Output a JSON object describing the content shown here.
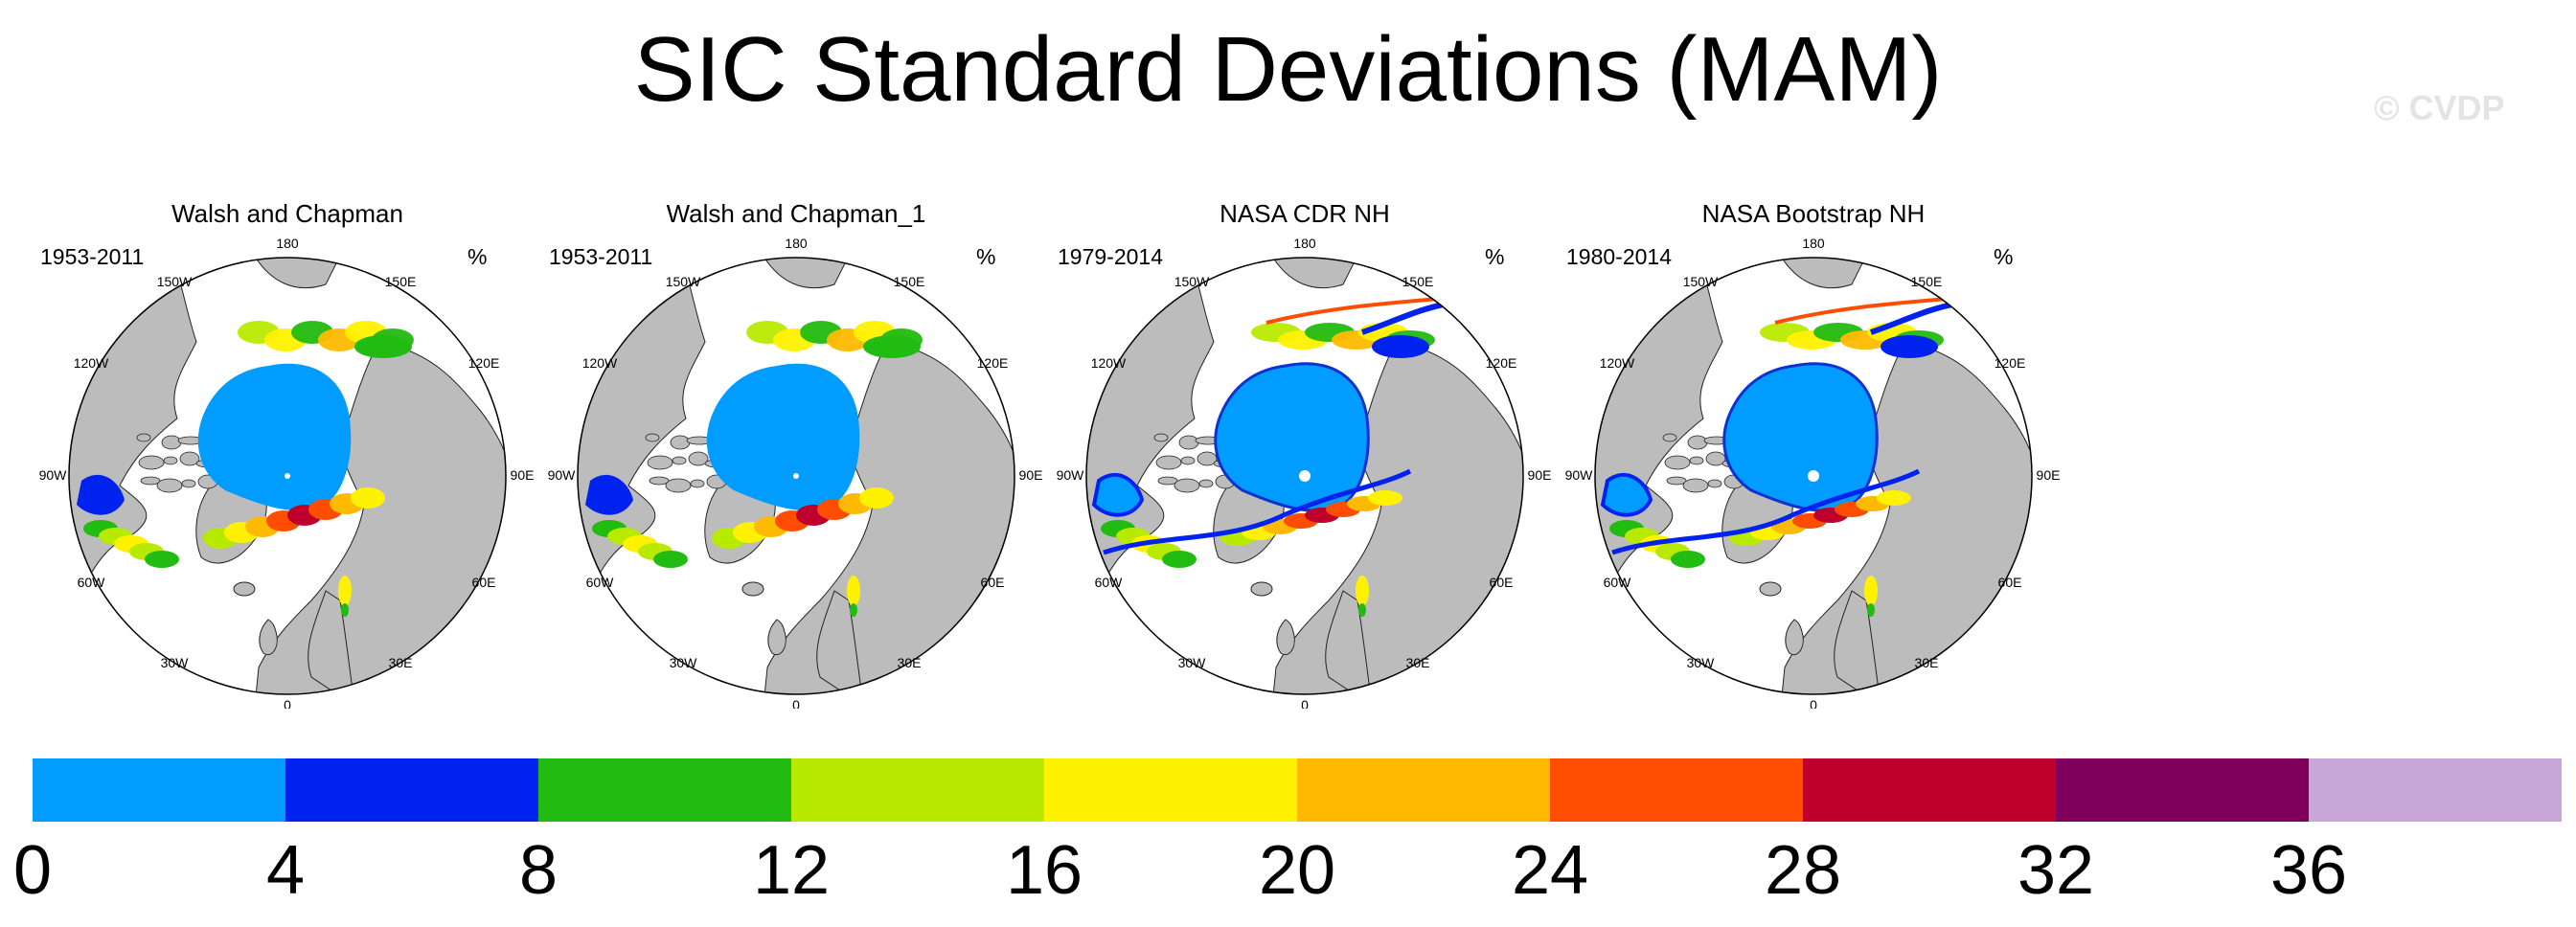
{
  "title": "SIC Standard Deviations (MAM)",
  "watermark": "© CVDP",
  "unit": "%",
  "longitude_labels": [
    "180",
    "150W",
    "150E",
    "120W",
    "120E",
    "90W",
    "90E",
    "60W",
    "60E",
    "30W",
    "30E",
    "0"
  ],
  "panels": [
    {
      "name": "Walsh and Chapman",
      "period": "1953-2011",
      "style": "coarse"
    },
    {
      "name": "Walsh and Chapman_1",
      "period": "1953-2011",
      "style": "coarse"
    },
    {
      "name": "NASA CDR NH",
      "period": "1979-2014",
      "style": "fine"
    },
    {
      "name": "NASA Bootstrap NH",
      "period": "1980-2014",
      "style": "fine"
    }
  ],
  "colorbar": {
    "colors": [
      "#009cff",
      "#0022ee",
      "#22bb11",
      "#b8ea00",
      "#fff200",
      "#ffba00",
      "#ff4d00",
      "#c0002c",
      "#7f005c",
      "#c9a6d8"
    ],
    "labels": [
      "0",
      "4",
      "8",
      "12",
      "16",
      "20",
      "24",
      "28",
      "32",
      "36"
    ]
  }
}
